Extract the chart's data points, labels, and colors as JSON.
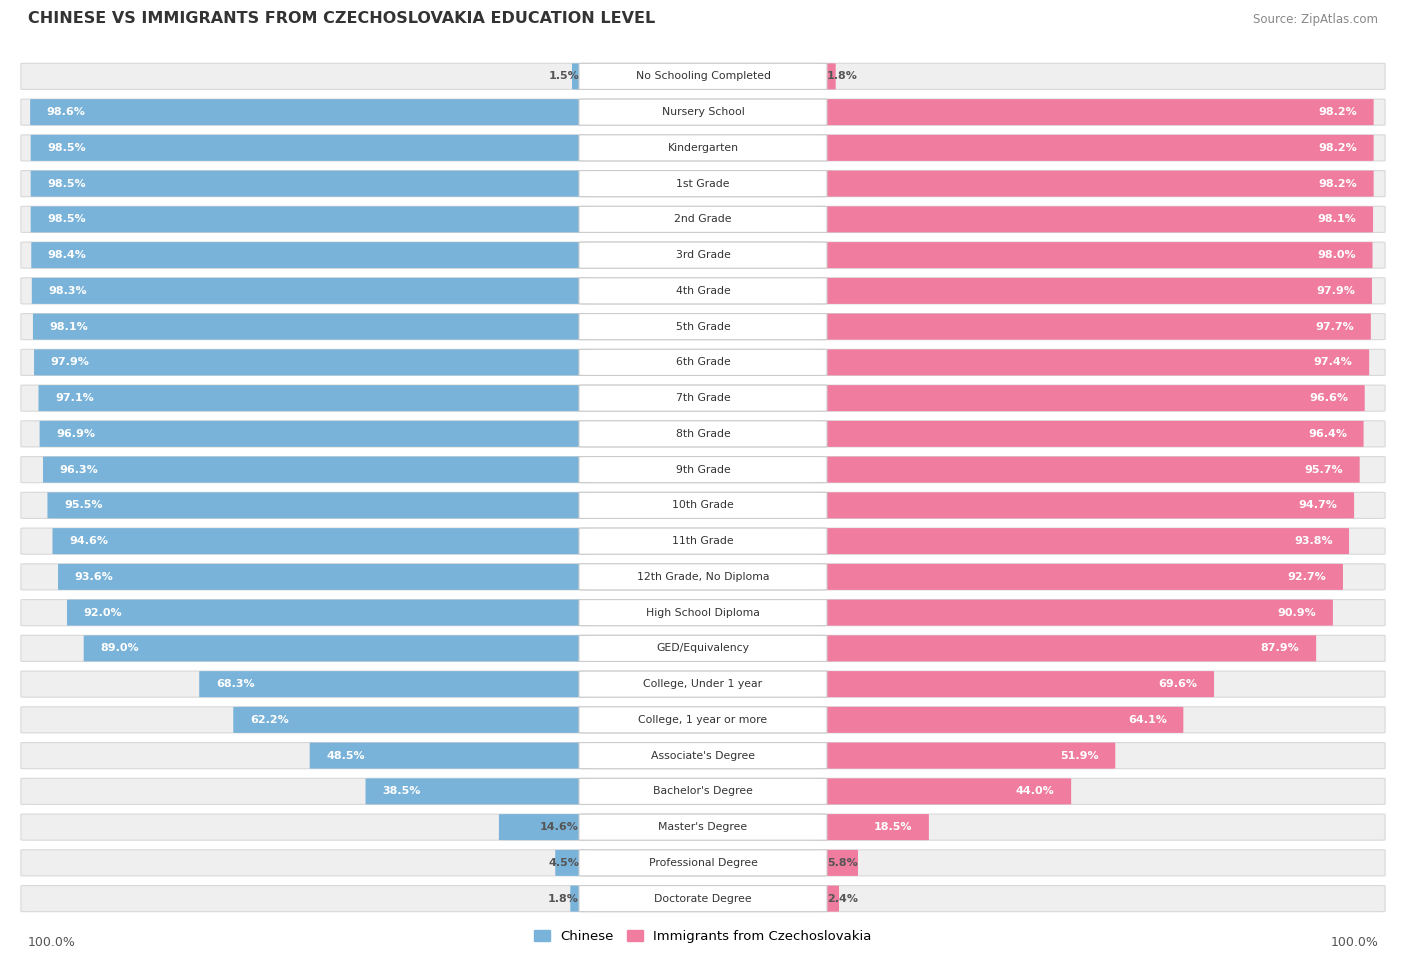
{
  "title": "CHINESE VS IMMIGRANTS FROM CZECHOSLOVAKIA EDUCATION LEVEL",
  "source": "Source: ZipAtlas.com",
  "categories": [
    "No Schooling Completed",
    "Nursery School",
    "Kindergarten",
    "1st Grade",
    "2nd Grade",
    "3rd Grade",
    "4th Grade",
    "5th Grade",
    "6th Grade",
    "7th Grade",
    "8th Grade",
    "9th Grade",
    "10th Grade",
    "11th Grade",
    "12th Grade, No Diploma",
    "High School Diploma",
    "GED/Equivalency",
    "College, Under 1 year",
    "College, 1 year or more",
    "Associate's Degree",
    "Bachelor's Degree",
    "Master's Degree",
    "Professional Degree",
    "Doctorate Degree"
  ],
  "chinese": [
    1.5,
    98.6,
    98.5,
    98.5,
    98.5,
    98.4,
    98.3,
    98.1,
    97.9,
    97.1,
    96.9,
    96.3,
    95.5,
    94.6,
    93.6,
    92.0,
    89.0,
    68.3,
    62.2,
    48.5,
    38.5,
    14.6,
    4.5,
    1.8
  ],
  "immigrants": [
    1.8,
    98.2,
    98.2,
    98.2,
    98.1,
    98.0,
    97.9,
    97.7,
    97.4,
    96.6,
    96.4,
    95.7,
    94.7,
    93.8,
    92.7,
    90.9,
    87.9,
    69.6,
    64.1,
    51.9,
    44.0,
    18.5,
    5.8,
    2.4
  ],
  "chinese_color": "#7ab3d9",
  "immigrants_color": "#f07ca0",
  "bar_bg_color": "#efefef",
  "row_border_color": "#d8d8d8",
  "legend_chinese": "Chinese",
  "legend_immigrants": "Immigrants from Czechoslovakia",
  "bottom_left_label": "100.0%",
  "bottom_right_label": "100.0%"
}
